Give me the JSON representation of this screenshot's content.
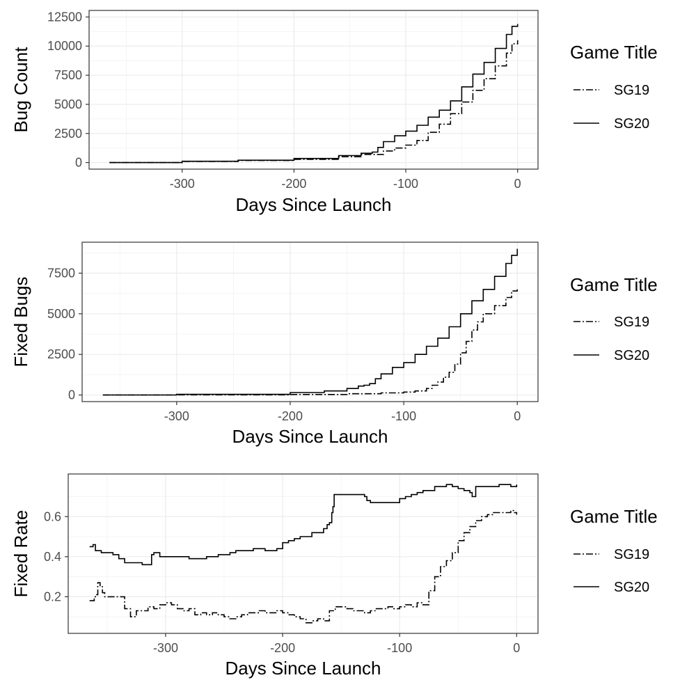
{
  "chart_data": [
    {
      "type": "line",
      "ylabel": "Bug Count",
      "xlabel": "Days Since Launch",
      "xlim": [
        -365,
        0
      ],
      "ylim": [
        0,
        12500
      ],
      "x_ticks": [
        -300,
        -200,
        -100,
        0
      ],
      "y_ticks": [
        0,
        2500,
        5000,
        7500,
        10000,
        12500
      ],
      "grid": true,
      "legend": {
        "title": "Game Title",
        "position": "right"
      },
      "series": [
        {
          "name": "SG19",
          "line_style": "dashdot",
          "x": [
            -365,
            -300,
            -250,
            -200,
            -160,
            -140,
            -120,
            -110,
            -100,
            -90,
            -80,
            -70,
            -60,
            -50,
            -40,
            -30,
            -20,
            -10,
            -5,
            0
          ],
          "y": [
            0,
            100,
            180,
            280,
            500,
            700,
            1000,
            1250,
            1500,
            1900,
            2600,
            3300,
            4200,
            5200,
            6200,
            7200,
            8300,
            9400,
            10200,
            10500
          ]
        },
        {
          "name": "SG20",
          "line_style": "solid",
          "x": [
            -365,
            -300,
            -250,
            -200,
            -160,
            -140,
            -130,
            -125,
            -120,
            -110,
            -100,
            -90,
            -80,
            -70,
            -60,
            -50,
            -40,
            -30,
            -20,
            -10,
            -5,
            0
          ],
          "y": [
            0,
            110,
            200,
            350,
            600,
            800,
            900,
            1300,
            1800,
            2300,
            2700,
            3200,
            3900,
            4500,
            5300,
            6500,
            7600,
            8600,
            9800,
            11000,
            11700,
            11900
          ]
        }
      ]
    },
    {
      "type": "line",
      "ylabel": "Fixed Bugs",
      "xlabel": "Days Since Launch",
      "xlim": [
        -365,
        0
      ],
      "ylim": [
        0,
        9000
      ],
      "x_ticks": [
        -300,
        -200,
        -100,
        0
      ],
      "y_ticks": [
        0,
        2500,
        5000,
        7500
      ],
      "grid": true,
      "legend": {
        "title": "Game Title",
        "position": "right"
      },
      "series": [
        {
          "name": "SG19",
          "line_style": "dashdot",
          "x": [
            -365,
            -300,
            -200,
            -150,
            -120,
            -100,
            -90,
            -80,
            -75,
            -70,
            -65,
            -60,
            -55,
            -50,
            -45,
            -40,
            -35,
            -30,
            -20,
            -10,
            -5,
            0
          ],
          "y": [
            0,
            10,
            30,
            80,
            130,
            180,
            250,
            400,
            600,
            800,
            1100,
            1400,
            1900,
            2600,
            3300,
            4000,
            4500,
            5000,
            5500,
            6000,
            6400,
            6500
          ]
        },
        {
          "name": "SG20",
          "line_style": "solid",
          "x": [
            -365,
            -300,
            -200,
            -170,
            -150,
            -140,
            -135,
            -130,
            -125,
            -120,
            -110,
            -100,
            -90,
            -80,
            -70,
            -60,
            -50,
            -40,
            -30,
            -20,
            -10,
            -5,
            0
          ],
          "y": [
            0,
            40,
            150,
            250,
            400,
            550,
            600,
            700,
            1000,
            1300,
            1700,
            2000,
            2500,
            3000,
            3500,
            4200,
            5000,
            5800,
            6500,
            7300,
            8100,
            8600,
            9000
          ]
        }
      ]
    },
    {
      "type": "line",
      "ylabel": "Fixed Rate",
      "xlabel": "Days Since Launch",
      "xlim": [
        -365,
        0
      ],
      "ylim": [
        0.05,
        0.78
      ],
      "x_ticks": [
        -300,
        -200,
        -100,
        0
      ],
      "y_ticks": [
        0.2,
        0.4,
        0.6
      ],
      "grid": true,
      "legend": {
        "title": "Game Title",
        "position": "right"
      },
      "series": [
        {
          "name": "SG19",
          "line_style": "dashdot",
          "x": [
            -365,
            -362,
            -361,
            -360,
            -358,
            -356,
            -354,
            -352,
            -350,
            -340,
            -335,
            -330,
            -325,
            -320,
            -315,
            -310,
            -305,
            -300,
            -295,
            -290,
            -285,
            -280,
            -275,
            -270,
            -265,
            -260,
            -255,
            -250,
            -245,
            -240,
            -235,
            -230,
            -225,
            -220,
            -215,
            -210,
            -205,
            -200,
            -195,
            -190,
            -185,
            -180,
            -175,
            -170,
            -165,
            -160,
            -155,
            -150,
            -145,
            -140,
            -135,
            -130,
            -125,
            -120,
            -115,
            -110,
            -105,
            -100,
            -95,
            -90,
            -85,
            -80,
            -75,
            -70,
            -65,
            -60,
            -55,
            -50,
            -45,
            -40,
            -35,
            -30,
            -25,
            -20,
            -15,
            -10,
            -5,
            -2,
            0
          ],
          "y": [
            0.18,
            0.18,
            0.2,
            0.21,
            0.27,
            0.25,
            0.22,
            0.2,
            0.2,
            0.2,
            0.14,
            0.1,
            0.13,
            0.13,
            0.15,
            0.14,
            0.16,
            0.17,
            0.16,
            0.14,
            0.13,
            0.14,
            0.11,
            0.12,
            0.11,
            0.12,
            0.11,
            0.1,
            0.09,
            0.1,
            0.11,
            0.12,
            0.12,
            0.13,
            0.12,
            0.12,
            0.13,
            0.12,
            0.11,
            0.1,
            0.09,
            0.07,
            0.08,
            0.09,
            0.08,
            0.13,
            0.15,
            0.15,
            0.14,
            0.13,
            0.13,
            0.12,
            0.13,
            0.14,
            0.14,
            0.15,
            0.14,
            0.15,
            0.16,
            0.15,
            0.17,
            0.16,
            0.23,
            0.3,
            0.35,
            0.38,
            0.42,
            0.48,
            0.52,
            0.55,
            0.58,
            0.6,
            0.61,
            0.62,
            0.62,
            0.62,
            0.63,
            0.62,
            0.61
          ]
        },
        {
          "name": "SG20",
          "line_style": "solid",
          "x": [
            -365,
            -362,
            -360,
            -355,
            -350,
            -345,
            -340,
            -335,
            -330,
            -325,
            -320,
            -318,
            -315,
            -312,
            -310,
            -305,
            -300,
            -295,
            -290,
            -285,
            -280,
            -275,
            -270,
            -265,
            -260,
            -255,
            -250,
            -245,
            -240,
            -235,
            -230,
            -225,
            -220,
            -215,
            -210,
            -205,
            -200,
            -195,
            -190,
            -185,
            -180,
            -175,
            -170,
            -165,
            -162,
            -160,
            -158,
            -157,
            -156,
            -150,
            -145,
            -140,
            -135,
            -130,
            -128,
            -125,
            -120,
            -115,
            -110,
            -105,
            -100,
            -95,
            -90,
            -85,
            -80,
            -75,
            -70,
            -65,
            -60,
            -55,
            -50,
            -45,
            -40,
            -38,
            -35,
            -30,
            -25,
            -20,
            -15,
            -10,
            -5,
            0
          ],
          "y": [
            0.45,
            0.46,
            0.43,
            0.42,
            0.42,
            0.41,
            0.39,
            0.37,
            0.37,
            0.37,
            0.36,
            0.36,
            0.36,
            0.41,
            0.42,
            0.4,
            0.4,
            0.4,
            0.4,
            0.4,
            0.39,
            0.39,
            0.39,
            0.4,
            0.4,
            0.41,
            0.41,
            0.42,
            0.43,
            0.43,
            0.43,
            0.44,
            0.44,
            0.43,
            0.43,
            0.44,
            0.47,
            0.48,
            0.49,
            0.5,
            0.5,
            0.52,
            0.52,
            0.54,
            0.56,
            0.57,
            0.62,
            0.65,
            0.71,
            0.71,
            0.71,
            0.71,
            0.71,
            0.7,
            0.68,
            0.67,
            0.67,
            0.67,
            0.67,
            0.67,
            0.69,
            0.7,
            0.71,
            0.72,
            0.73,
            0.73,
            0.75,
            0.75,
            0.76,
            0.75,
            0.74,
            0.73,
            0.72,
            0.7,
            0.75,
            0.75,
            0.75,
            0.75,
            0.76,
            0.76,
            0.75,
            0.76
          ]
        }
      ]
    }
  ]
}
